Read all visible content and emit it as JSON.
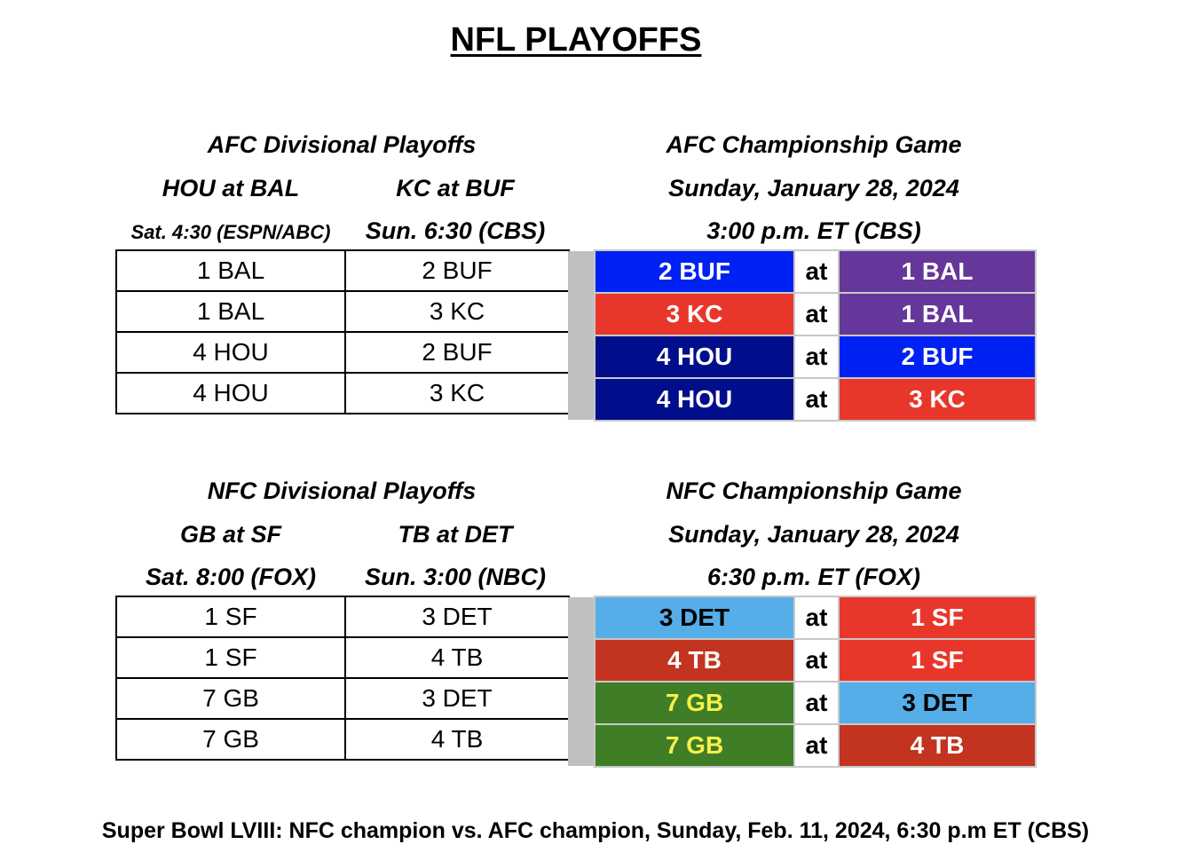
{
  "title": "NFL PLAYOFFS",
  "afc": {
    "divisional_header": "AFC Divisional Playoffs",
    "game1": {
      "matchup": "HOU at BAL",
      "time": "Sat. 4:30 (ESPN/ABC)"
    },
    "game2": {
      "matchup": "KC at BUF",
      "time": "Sun. 6:30 (CBS)"
    },
    "rows": [
      {
        "left": "1 BAL",
        "right": "2 BUF"
      },
      {
        "left": "1 BAL",
        "right": "3 KC"
      },
      {
        "left": "4 HOU",
        "right": "2 BUF"
      },
      {
        "left": "4 HOU",
        "right": "3 KC"
      }
    ],
    "championship": {
      "header": "AFC Championship Game",
      "date": "Sunday, January 28, 2024",
      "time": "3:00 p.m. ET (CBS)",
      "matchups": [
        {
          "away": "2 BUF",
          "at": "at",
          "home": "1 BAL",
          "away_bg": "#0021f3",
          "away_fg": "#ffffff",
          "home_bg": "#66379a",
          "home_fg": "#ffffff"
        },
        {
          "away": "3 KC",
          "at": "at",
          "home": "1 BAL",
          "away_bg": "#e8372a",
          "away_fg": "#ffffff",
          "home_bg": "#66379a",
          "home_fg": "#ffffff"
        },
        {
          "away": "4 HOU",
          "at": "at",
          "home": "2 BUF",
          "away_bg": "#000e8c",
          "away_fg": "#ffffff",
          "home_bg": "#0021f3",
          "home_fg": "#ffffff"
        },
        {
          "away": "4 HOU",
          "at": "at",
          "home": "3 KC",
          "away_bg": "#000e8c",
          "away_fg": "#ffffff",
          "home_bg": "#e8372a",
          "home_fg": "#ffffff"
        }
      ]
    }
  },
  "nfc": {
    "divisional_header": "NFC Divisional Playoffs",
    "game1": {
      "matchup": "GB at SF",
      "time": "Sat. 8:00 (FOX)"
    },
    "game2": {
      "matchup": "TB at DET",
      "time": "Sun. 3:00 (NBC)"
    },
    "rows": [
      {
        "left": "1 SF",
        "right": "3 DET"
      },
      {
        "left": "1 SF",
        "right": "4 TB"
      },
      {
        "left": "7 GB",
        "right": "3 DET"
      },
      {
        "left": "7 GB",
        "right": "4 TB"
      }
    ],
    "championship": {
      "header": "NFC Championship Game",
      "date": "Sunday, January 28, 2024",
      "time": "6:30 p.m. ET (FOX)",
      "matchups": [
        {
          "away": "3 DET",
          "at": "at",
          "home": "1 SF",
          "away_bg": "#56aee8",
          "away_fg": "#000000",
          "home_bg": "#e8372a",
          "home_fg": "#ffffff"
        },
        {
          "away": "4 TB",
          "at": "at",
          "home": "1 SF",
          "away_bg": "#c23420",
          "away_fg": "#ffffff",
          "home_bg": "#e8372a",
          "home_fg": "#ffffff"
        },
        {
          "away": "7 GB",
          "at": "at",
          "home": "3 DET",
          "away_bg": "#3f7d26",
          "away_fg": "#f6f04a",
          "home_bg": "#56aee8",
          "home_fg": "#000000"
        },
        {
          "away": "7 GB",
          "at": "at",
          "home": "4 TB",
          "away_bg": "#3f7d26",
          "away_fg": "#f6f04a",
          "home_bg": "#c23420",
          "home_fg": "#ffffff"
        }
      ]
    }
  },
  "footer": "Super Bowl LVIII: NFC champion vs. AFC champion, Sunday, Feb. 11, 2024, 6:30 p.m ET (CBS)"
}
